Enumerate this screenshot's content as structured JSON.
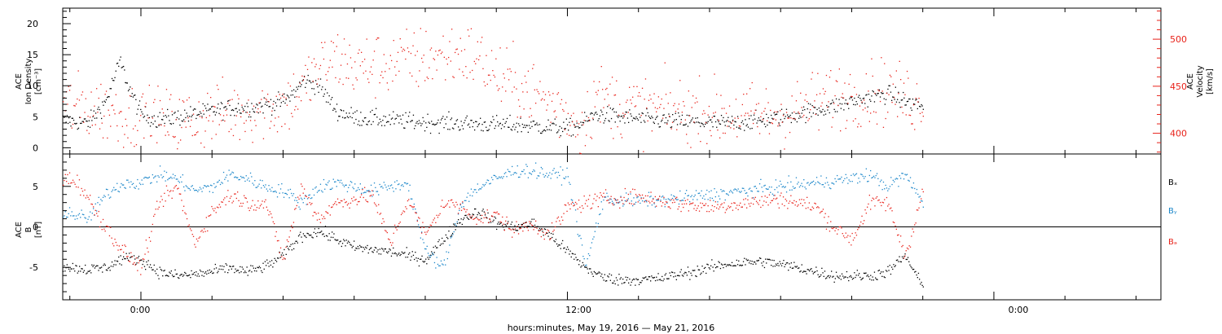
{
  "xlabel": "hours:minutes, May 19, 2016 — May 21, 2016",
  "x_ticks": [
    "0:00",
    "12:00",
    "0:00"
  ],
  "colors": {
    "black": "#000000",
    "blue": "#1a86c9",
    "red": "#e8221a"
  },
  "chart_data": [
    {
      "type": "scatter",
      "panel": "top",
      "x_unit": "hours since May 19 00:00",
      "xlim": [
        -2.2,
        28.7
      ],
      "left_axis": {
        "label_lines": [
          "ACE",
          "Ion Density",
          "[cm⁻³]"
        ],
        "ylim": [
          -1,
          22.5
        ],
        "ticks": [
          "0",
          "5",
          "10",
          "15",
          "20"
        ]
      },
      "right_axis": {
        "label_lines": [
          "ACE",
          "Velocity",
          "[km/s]"
        ],
        "ylim": [
          378,
          533
        ],
        "ticks": [
          "400",
          "450",
          "500"
        ],
        "color": "#e8221a"
      },
      "series": [
        {
          "name": "Ion Density",
          "color": "#000000",
          "axis": "left",
          "scatter": 1.0,
          "x": [
            -2.2,
            -1.5,
            -1.0,
            -0.6,
            -0.3,
            0.0,
            0.5,
            1.0,
            1.5,
            2.0,
            2.5,
            3.0,
            3.5,
            4.0,
            4.3,
            4.6,
            5.0,
            5.5,
            6.0,
            7.0,
            8.0,
            9.0,
            10.0,
            11.0,
            12.0,
            12.4,
            12.8,
            13.5,
            14.5,
            15.5,
            16.5,
            17.5,
            18.5,
            19.5,
            20.5,
            21.0,
            21.5,
            22.0
          ],
          "y": [
            4.5,
            4.0,
            7.5,
            14.0,
            9.0,
            5.5,
            4.5,
            5.0,
            5.5,
            6.0,
            6.5,
            6.5,
            7.0,
            7.5,
            9.0,
            11.0,
            10.0,
            6.0,
            5.0,
            4.5,
            4.2,
            4.0,
            3.8,
            3.6,
            3.2,
            4.0,
            5.5,
            5.0,
            4.5,
            4.2,
            4.0,
            4.5,
            5.5,
            6.8,
            8.2,
            8.8,
            7.5,
            6.8
          ]
        },
        {
          "name": "Velocity",
          "color": "#e8221a",
          "axis": "right",
          "scatter": 25,
          "x": [
            -2.2,
            -1.0,
            0.0,
            1.0,
            2.0,
            3.0,
            4.0,
            4.5,
            5.0,
            5.5,
            6.0,
            7.0,
            8.0,
            9.0,
            9.5,
            10.0,
            11.0,
            12.0,
            12.4,
            12.8,
            13.5,
            14.5,
            15.5,
            16.5,
            17.5,
            18.5,
            19.5,
            20.5,
            21.0,
            21.5,
            22.0
          ],
          "y": [
            430,
            425,
            415,
            412,
            420,
            425,
            430,
            445,
            470,
            480,
            470,
            475,
            480,
            485,
            480,
            460,
            445,
            420,
            408,
            440,
            430,
            425,
            423,
            420,
            418,
            425,
            440,
            445,
            445,
            438,
            432
          ]
        }
      ]
    },
    {
      "type": "scatter",
      "panel": "bottom",
      "x_unit": "hours since May 19 00:00",
      "xlim": [
        -2.2,
        28.7
      ],
      "axis_label_lines": [
        "ACE",
        "B",
        "[nT]"
      ],
      "ylim": [
        -9,
        9
      ],
      "y_ticks": [
        "-5",
        "0",
        "5"
      ],
      "legend_placement": "right",
      "series": [
        {
          "name": "Bₓ",
          "color": "#000000",
          "scatter": 0.5,
          "x": [
            -2.2,
            -1.5,
            -1.0,
            -0.5,
            0.0,
            0.5,
            1.0,
            1.5,
            2.0,
            2.5,
            3.0,
            3.5,
            4.0,
            4.5,
            5.0,
            6.0,
            7.0,
            8.0,
            8.5,
            9.0,
            9.5,
            10.0,
            10.5,
            11.0,
            11.5,
            12.0,
            12.5,
            13.0,
            13.5,
            14.5,
            15.5,
            16.5,
            17.5,
            18.5,
            19.5,
            20.5,
            21.0,
            21.5,
            22.0
          ],
          "y": [
            -4.8,
            -5.2,
            -5.0,
            -3.8,
            -4.0,
            -5.5,
            -6.0,
            -5.8,
            -5.5,
            -5.0,
            -5.5,
            -4.8,
            -3.5,
            -1.0,
            -0.5,
            -2.5,
            -3.0,
            -4.0,
            -1.5,
            1.0,
            2.0,
            0.5,
            0.0,
            0.5,
            -1.0,
            -3.0,
            -5.0,
            -6.2,
            -6.5,
            -6.4,
            -5.5,
            -4.5,
            -4.2,
            -5.0,
            -6.0,
            -6.0,
            -5.5,
            -3.5,
            -7.5
          ]
        },
        {
          "name": "Bᵧ",
          "color": "#1a86c9",
          "scatter": 0.6,
          "x": [
            -2.2,
            -1.5,
            -1.0,
            -0.5,
            0.0,
            0.5,
            1.0,
            1.5,
            2.0,
            2.5,
            3.0,
            3.5,
            4.0,
            4.5,
            5.0,
            5.5,
            6.0,
            6.5,
            7.0,
            7.5,
            8.0,
            8.5,
            9.0,
            9.5,
            10.0,
            10.5,
            11.0,
            11.5,
            12.0,
            12.5,
            13.0,
            14.0,
            15.0,
            16.0,
            17.0,
            18.0,
            19.0,
            20.0,
            20.5,
            21.0,
            21.5,
            22.0
          ],
          "y": [
            2.0,
            1.0,
            4.0,
            5.5,
            5.5,
            6.5,
            6.0,
            4.5,
            5.0,
            6.5,
            6.0,
            5.0,
            4.5,
            3.0,
            5.0,
            5.5,
            5.0,
            4.5,
            5.0,
            5.5,
            -3.0,
            -5.0,
            3.0,
            5.0,
            6.0,
            7.0,
            7.0,
            6.5,
            6.5,
            -5.0,
            3.5,
            3.2,
            3.5,
            4.0,
            4.5,
            5.0,
            5.5,
            6.0,
            6.5,
            5.0,
            6.5,
            3.0
          ]
        },
        {
          "name": "Bₔ",
          "color": "#e8221a",
          "scatter": 0.7,
          "x": [
            -2.2,
            -1.8,
            -1.5,
            -1.0,
            -0.5,
            0.0,
            0.5,
            1.0,
            1.5,
            2.0,
            2.5,
            3.0,
            3.5,
            4.0,
            4.5,
            5.0,
            5.5,
            6.0,
            6.5,
            7.0,
            7.5,
            8.0,
            8.5,
            9.0,
            9.5,
            10.0,
            10.5,
            11.0,
            11.5,
            12.0,
            12.5,
            13.0,
            14.0,
            15.0,
            16.0,
            17.0,
            18.0,
            19.0,
            19.5,
            20.0,
            20.5,
            21.0,
            21.5,
            22.0
          ],
          "y": [
            6.0,
            5.7,
            3.5,
            0.0,
            -3.0,
            -5.0,
            3.0,
            5.0,
            -2.0,
            2.0,
            4.0,
            3.0,
            3.0,
            -4.0,
            5.0,
            1.0,
            3.0,
            3.5,
            4.0,
            -2.0,
            3.5,
            -1.0,
            3.0,
            2.5,
            1.0,
            1.5,
            -0.5,
            0.5,
            -1.0,
            2.5,
            3.0,
            3.5,
            3.8,
            3.0,
            2.5,
            3.0,
            3.5,
            2.5,
            0.0,
            -1.5,
            3.0,
            3.0,
            -3.5,
            4.5
          ]
        }
      ]
    }
  ]
}
